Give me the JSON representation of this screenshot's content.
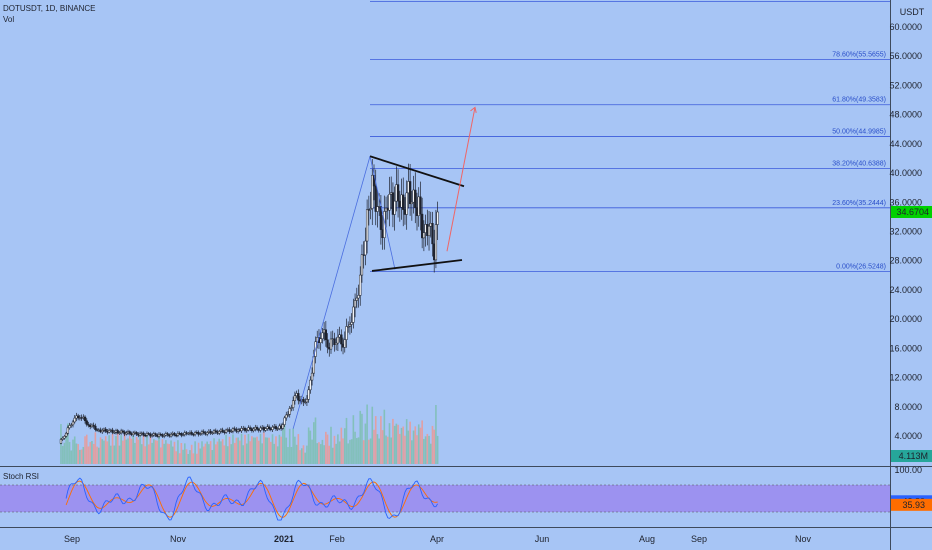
{
  "header": {
    "symbol_line": "DOTUSDT, 1D, BINANCE",
    "vol_label": "Vol"
  },
  "price_axis": {
    "unit": "USDT",
    "ticks": [
      "60.0000",
      "56.0000",
      "52.0000",
      "48.0000",
      "44.0000",
      "40.0000",
      "36.0000",
      "32.0000",
      "28.0000",
      "24.0000",
      "20.0000",
      "16.0000",
      "12.0000",
      "8.0000",
      "4.0000"
    ],
    "current_price": "34.6704",
    "volume_badge": "4.113M"
  },
  "rsi_panel": {
    "label": "Stoch RSI",
    "axis_top": "100.00",
    "k_value": "43.80",
    "d_value": "35.93"
  },
  "time_axis": {
    "labels": [
      "Sep",
      "Nov",
      "2021",
      "Feb",
      "Apr",
      "Jun",
      "Aug",
      "Sep",
      "Nov"
    ]
  },
  "colors": {
    "background": "#a7c5f5",
    "up_candle": "#26a69a",
    "down_candle": "#ef5350",
    "fib_line": "#3b5bdb",
    "current_price_badge": "#00d100",
    "k_line": "#2962ff",
    "d_line": "#ff6d00",
    "rsi_band": "#9b8cf0",
    "projection_arrow": "#f06565"
  },
  "chart_data": {
    "type": "candlestick",
    "price_unit": "USDT",
    "ylim": [
      2,
      62
    ],
    "fib_levels": [
      {
        "ratio": "0.00%",
        "price": 26.5248,
        "label": "0.00%(26.5248)"
      },
      {
        "ratio": "23.60%",
        "price": 35.2444,
        "label": "23.60%(35.2444)"
      },
      {
        "ratio": "38.20%",
        "price": 40.6388,
        "label": "38.20%(40.6388)"
      },
      {
        "ratio": "50.00%",
        "price": 44.9985,
        "label": "50.00%(44.9985)"
      },
      {
        "ratio": "61.80%",
        "price": 49.3583,
        "label": "61.80%(49.3583)"
      },
      {
        "ratio": "78.60%",
        "price": 55.5655,
        "label": "78.60%(55.5655)"
      }
    ],
    "fib_topline_price": 63.5,
    "series": [
      {
        "name": "DOTUSDT",
        "points": [
          {
            "date": "2020-08-18",
            "close": 3.0
          },
          {
            "date": "2020-08-22",
            "close": 4.5
          },
          {
            "date": "2020-08-26",
            "close": 6.2
          },
          {
            "date": "2020-08-30",
            "close": 6.8
          },
          {
            "date": "2020-09-04",
            "close": 5.6
          },
          {
            "date": "2020-09-10",
            "close": 4.8
          },
          {
            "date": "2020-09-20",
            "close": 4.6
          },
          {
            "date": "2020-10-01",
            "close": 4.3
          },
          {
            "date": "2020-10-15",
            "close": 4.1
          },
          {
            "date": "2020-11-01",
            "close": 4.3
          },
          {
            "date": "2020-11-15",
            "close": 4.5
          },
          {
            "date": "2020-12-01",
            "close": 4.9
          },
          {
            "date": "2020-12-15",
            "close": 5.0
          },
          {
            "date": "2020-12-25",
            "close": 5.2
          },
          {
            "date": "2020-12-30",
            "close": 7.8
          },
          {
            "date": "2021-01-03",
            "close": 9.6
          },
          {
            "date": "2021-01-07",
            "close": 8.3
          },
          {
            "date": "2021-01-10",
            "close": 9.9
          },
          {
            "date": "2021-01-14",
            "close": 16.5
          },
          {
            "date": "2021-01-18",
            "close": 18.2
          },
          {
            "date": "2021-01-22",
            "close": 16.4
          },
          {
            "date": "2021-01-26",
            "close": 17.5
          },
          {
            "date": "2021-01-30",
            "close": 16.8
          },
          {
            "date": "2021-02-03",
            "close": 19.6
          },
          {
            "date": "2021-02-07",
            "close": 22.6
          },
          {
            "date": "2021-02-10",
            "close": 27.8
          },
          {
            "date": "2021-02-13",
            "close": 33.5
          },
          {
            "date": "2021-02-16",
            "close": 38.4
          },
          {
            "date": "2021-02-19",
            "close": 35.1
          },
          {
            "date": "2021-02-22",
            "close": 31.8
          },
          {
            "date": "2021-02-25",
            "close": 36.4
          },
          {
            "date": "2021-02-28",
            "close": 35.9
          },
          {
            "date": "2021-03-03",
            "close": 37.2
          },
          {
            "date": "2021-03-06",
            "close": 35.0
          },
          {
            "date": "2021-03-09",
            "close": 37.8
          },
          {
            "date": "2021-03-12",
            "close": 36.1
          },
          {
            "date": "2021-03-15",
            "close": 35.3
          },
          {
            "date": "2021-03-18",
            "close": 31.2
          },
          {
            "date": "2021-03-21",
            "close": 33.0
          },
          {
            "date": "2021-03-24",
            "close": 29.1
          },
          {
            "date": "2021-03-26",
            "close": 34.67
          }
        ]
      }
    ],
    "stoch_rsi": {
      "ylim": [
        0,
        100
      ],
      "upper_band": 80,
      "lower_band": 20,
      "k_last": 43.8,
      "d_last": 35.93
    }
  }
}
